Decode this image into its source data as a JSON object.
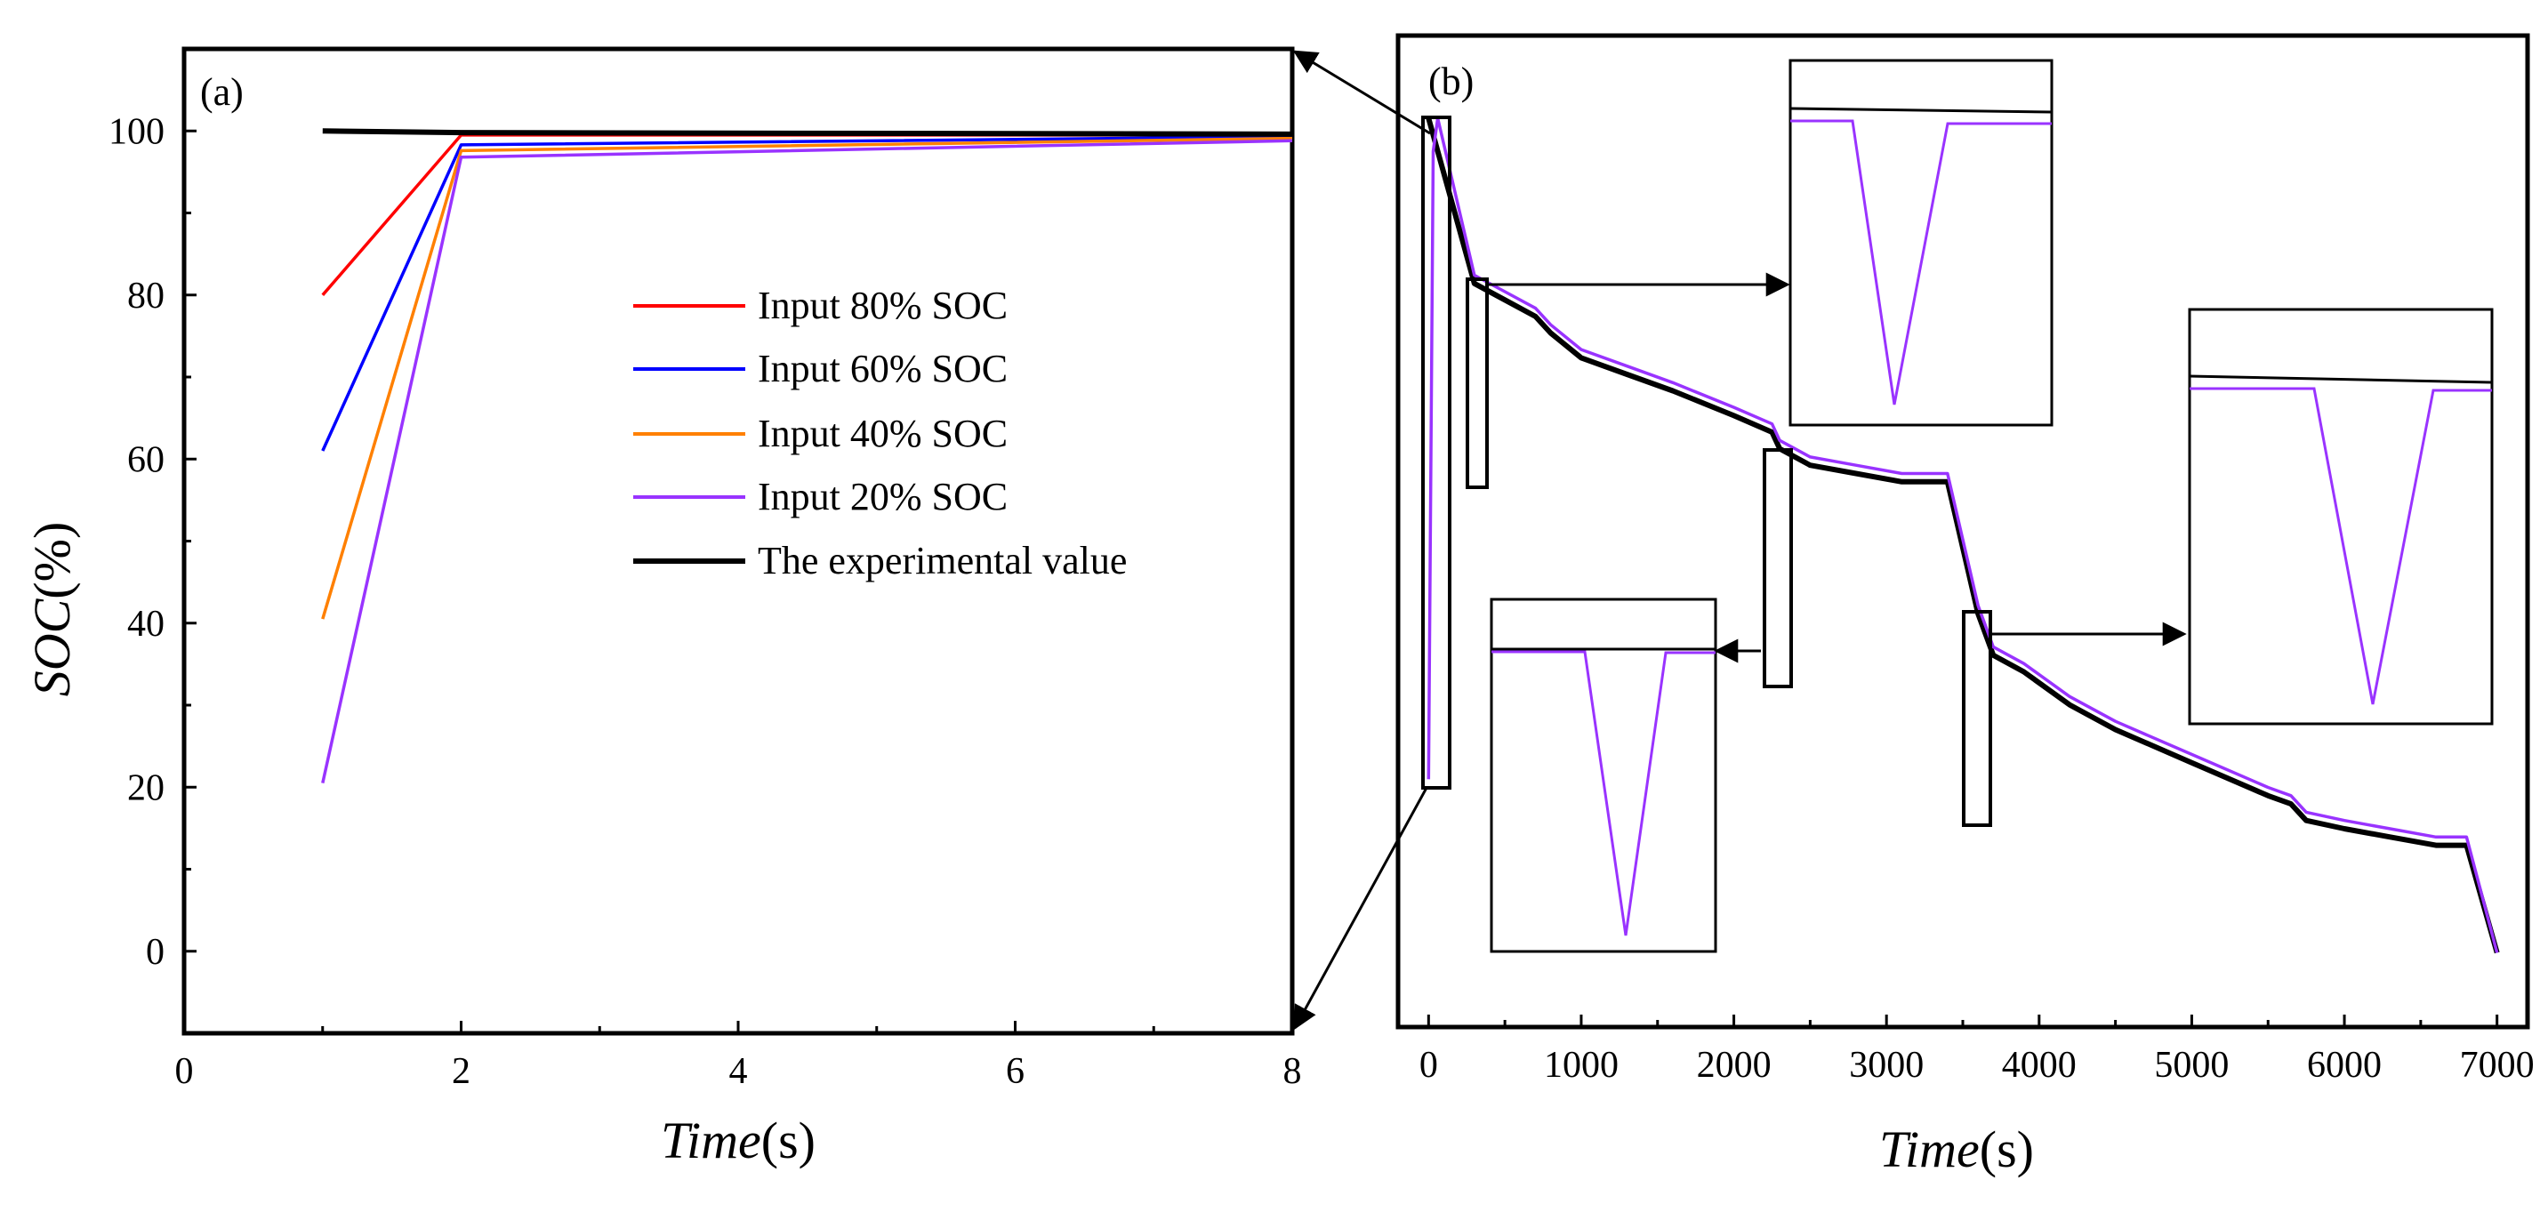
{
  "chart_data": [
    {
      "type": "line",
      "panel": "(a)",
      "xlabel_italic": "Time",
      "xlabel_unit": "(s)",
      "ylabel_italic": "SOC",
      "ylabel_unit": "(%)",
      "xlim": [
        0,
        8
      ],
      "ylim": [
        -10,
        110
      ],
      "xticks": [
        0,
        2,
        4,
        6,
        8
      ],
      "yticks": [
        0,
        20,
        40,
        60,
        80,
        100
      ],
      "legend_position": "center",
      "series": [
        {
          "name": "Input 80% SOC",
          "color": "#ff0000",
          "x": [
            1,
            2,
            8
          ],
          "y": [
            80,
            99.5,
            99.5
          ]
        },
        {
          "name": "Input 60% SOC",
          "color": "#0000ff",
          "x": [
            1,
            2,
            8
          ],
          "y": [
            61,
            98.3,
            99.3
          ]
        },
        {
          "name": "Input 40% SOC",
          "color": "#ff8000",
          "x": [
            1,
            2,
            8
          ],
          "y": [
            40.5,
            97.6,
            99.1
          ]
        },
        {
          "name": "Input 20% SOC",
          "color": "#9933ff",
          "x": [
            1,
            2,
            8
          ],
          "y": [
            20.5,
            96.8,
            98.8
          ]
        },
        {
          "name": "The experimental value",
          "color": "#000000",
          "x": [
            1,
            2,
            8
          ],
          "y": [
            100,
            99.8,
            99.6
          ]
        }
      ]
    },
    {
      "type": "line",
      "panel": "(b)",
      "xlabel_italic": "Time",
      "xlabel_unit": "(s)",
      "xlim": [
        -200,
        7200
      ],
      "ylim": [
        -10,
        110
      ],
      "xticks": [
        0,
        1000,
        2000,
        3000,
        4000,
        5000,
        6000,
        7000
      ],
      "series": [
        {
          "name": "The experimental value",
          "color": "#000000",
          "x": [
            0,
            300,
            500,
            700,
            800,
            1000,
            1300,
            1600,
            2000,
            2250,
            2300,
            2500,
            2800,
            3100,
            3400,
            3600,
            3700,
            3900,
            4200,
            4500,
            5000,
            5500,
            5650,
            5750,
            6000,
            6300,
            6600,
            6800,
            7000
          ],
          "y": [
            100,
            80,
            78,
            76,
            74,
            71,
            69,
            67,
            64,
            62,
            60,
            58,
            57,
            56,
            56,
            40,
            35,
            33,
            29,
            26,
            22,
            18,
            17,
            15,
            14,
            13,
            12,
            12,
            -1
          ]
        },
        {
          "name": "Input 20% SOC",
          "color": "#9933ff",
          "x": [
            0,
            30,
            60,
            300,
            500,
            700,
            800,
            1000,
            1300,
            1600,
            2000,
            2250,
            2300,
            2500,
            2800,
            3100,
            3400,
            3600,
            3700,
            3900,
            4200,
            4500,
            5000,
            5500,
            5650,
            5750,
            6000,
            6300,
            6600,
            6800,
            7000
          ],
          "y": [
            20,
            96,
            100,
            81,
            79,
            77,
            75,
            72,
            70,
            68,
            65,
            63,
            61,
            59,
            58,
            57,
            57,
            41,
            36,
            34,
            30,
            27,
            23,
            19,
            18,
            16,
            15,
            14,
            13,
            13,
            -1
          ]
        }
      ]
    }
  ]
}
